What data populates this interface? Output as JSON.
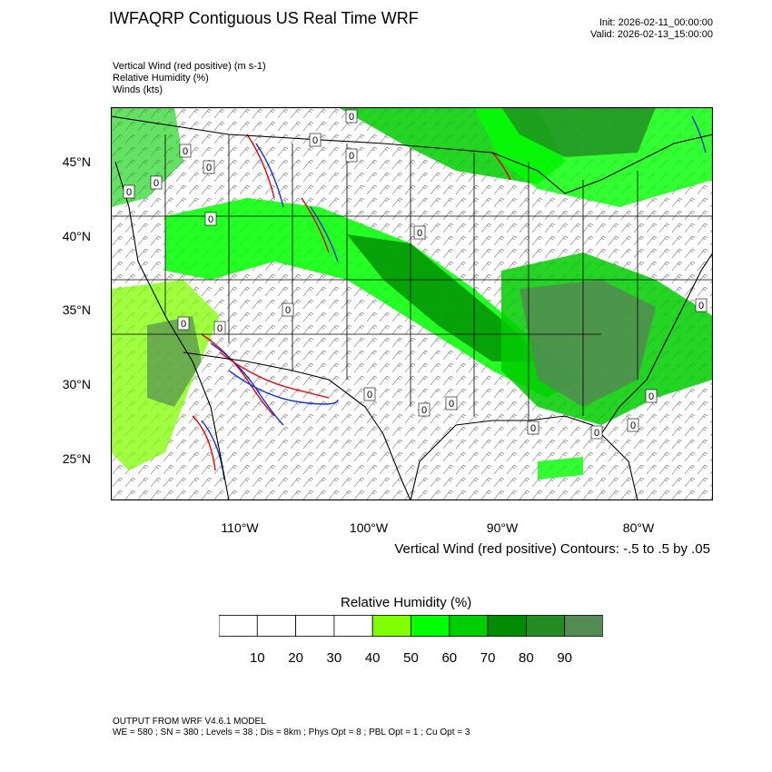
{
  "header": {
    "title": "IWFAQRP Contiguous US Real Time WRF",
    "init": "Init: 2026-02-11_00:00:00",
    "valid": "Valid: 2026-02-13_15:00:00"
  },
  "fields": [
    "Vertical Wind (red positive)   (m s-1)",
    "Relative Humidity   (%)",
    "Winds   (kts)"
  ],
  "map": {
    "lat_labels": [
      "45°N",
      "40°N",
      "35°N",
      "30°N",
      "25°N"
    ],
    "lon_labels": [
      "110°W",
      "100°W",
      "90°W",
      "80°W"
    ],
    "contour_labels": [
      "0",
      "0",
      "0",
      "0",
      "0",
      "0",
      "0",
      "0",
      "0",
      "0",
      "0",
      "0",
      "0",
      "0",
      "0",
      "0",
      "0",
      "0",
      "0",
      "0"
    ],
    "colors": {
      "rh_50": "#7fff00",
      "rh_60": "#00ff00",
      "rh_70": "#00cd00",
      "rh_80": "#008b00",
      "rh_90": "#228b22",
      "rh_100": "#548b54",
      "updraft": "#e00000",
      "downdraft": "#1030e0"
    }
  },
  "contour_note": "Vertical Wind (red positive) Contours: -.5 to .5 by .05",
  "colorbar": {
    "title": "Relative Humidity  (%)",
    "colors": [
      "#ffffff",
      "#ffffff",
      "#ffffff",
      "#ffffff",
      "#7fff00",
      "#00ff00",
      "#00cd00",
      "#008b00",
      "#228b22",
      "#548b54"
    ],
    "labels": [
      "10",
      "20",
      "30",
      "40",
      "50",
      "60",
      "70",
      "80",
      "90"
    ]
  },
  "footer": {
    "line1": "OUTPUT FROM WRF V4.6.1 MODEL",
    "line2": "WE = 580 ; SN = 380 ; Levels = 38 ; Dis = 8km ; Phys Opt = 8 ; PBL Opt = 1 ; Cu Opt = 3"
  }
}
